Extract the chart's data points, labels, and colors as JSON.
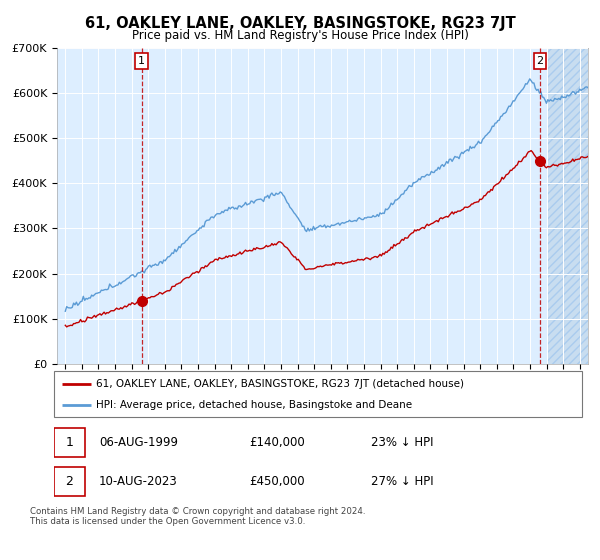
{
  "title": "61, OAKLEY LANE, OAKLEY, BASINGSTOKE, RG23 7JT",
  "subtitle": "Price paid vs. HM Land Registry's House Price Index (HPI)",
  "ylim": [
    0,
    700000
  ],
  "yticks": [
    0,
    100000,
    200000,
    300000,
    400000,
    500000,
    600000,
    700000
  ],
  "ytick_labels": [
    "£0",
    "£100K",
    "£200K",
    "£300K",
    "£400K",
    "£500K",
    "£600K",
    "£700K"
  ],
  "xlim_start": 1994.5,
  "xlim_end": 2026.5,
  "hpi_color": "#5b9bd5",
  "price_color": "#c00000",
  "transaction1_date": 1999.6,
  "transaction1_price": 140000,
  "transaction2_date": 2023.6,
  "transaction2_price": 450000,
  "legend_line1": "61, OAKLEY LANE, OAKLEY, BASINGSTOKE, RG23 7JT (detached house)",
  "legend_line2": "HPI: Average price, detached house, Basingstoke and Deane",
  "ann1_date_str": "06-AUG-1999",
  "ann1_price_str": "£140,000",
  "ann1_hpi_str": "23% ↓ HPI",
  "ann2_date_str": "10-AUG-2023",
  "ann2_price_str": "£450,000",
  "ann2_hpi_str": "27% ↓ HPI",
  "footer": "Contains HM Land Registry data © Crown copyright and database right 2024.\nThis data is licensed under the Open Government Licence v3.0.",
  "plot_bg": "#ddeeff",
  "hatch_bg": "#c8ddf0"
}
